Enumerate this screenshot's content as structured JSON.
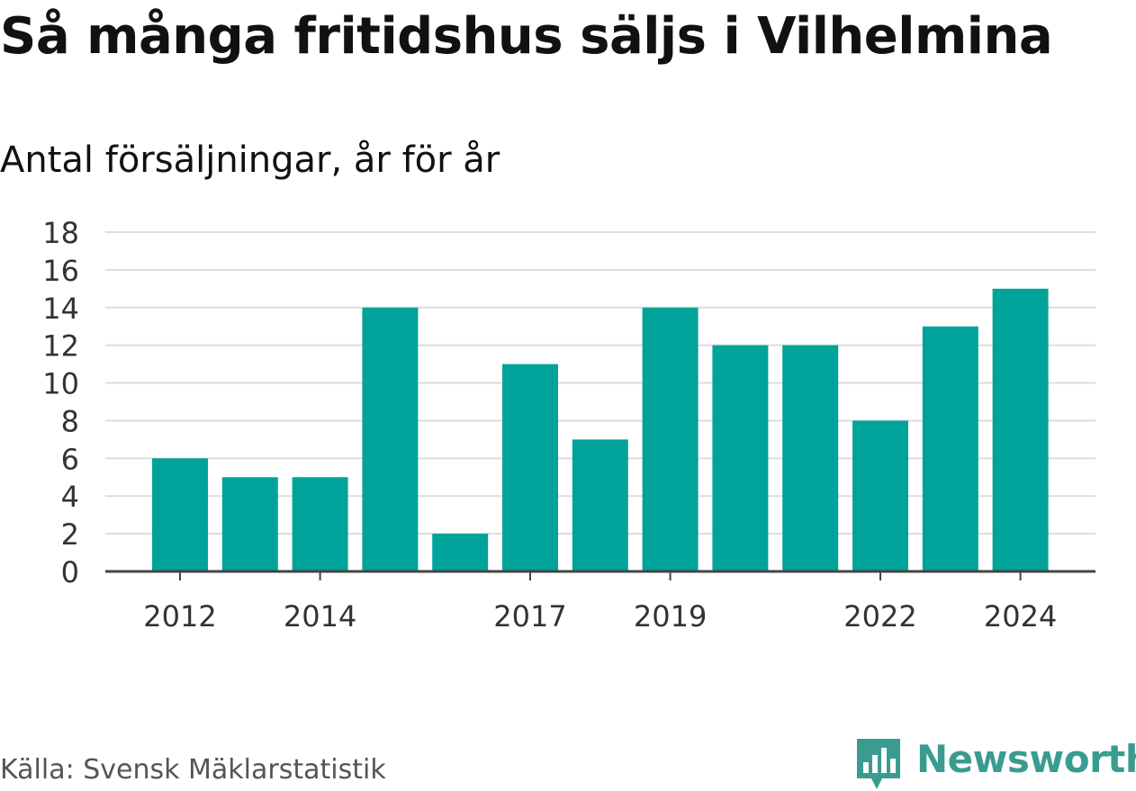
{
  "title": "Så många fritidshus säljs i Vilhelmina",
  "subtitle": "Antal försäljningar, år för år",
  "source": "Källa: Svensk Mäklarstatistik",
  "brand": {
    "name": "Newsworthy",
    "logo_icon": "newsworthy-bar-chart-icon"
  },
  "colors": {
    "bar": "#00a39a",
    "grid": "#dddddd",
    "axis": "#444444",
    "brand": "#3a9c91"
  },
  "chart_data": {
    "type": "bar",
    "categories": [
      "2012",
      "2013",
      "2014",
      "2015",
      "2016",
      "2017",
      "2018",
      "2019",
      "2020",
      "2021",
      "2022",
      "2023",
      "2024"
    ],
    "values": [
      6,
      5,
      5,
      14,
      2,
      11,
      7,
      14,
      12,
      12,
      8,
      13,
      15
    ],
    "x_tick_labels": [
      "2012",
      "2014",
      "2017",
      "2019",
      "2022",
      "2024"
    ],
    "y_ticks": [
      "0",
      "2",
      "4",
      "6",
      "8",
      "10",
      "12",
      "14",
      "16",
      "18"
    ],
    "ylim": [
      0,
      18
    ],
    "grid": true,
    "xlabel": "",
    "ylabel": ""
  }
}
